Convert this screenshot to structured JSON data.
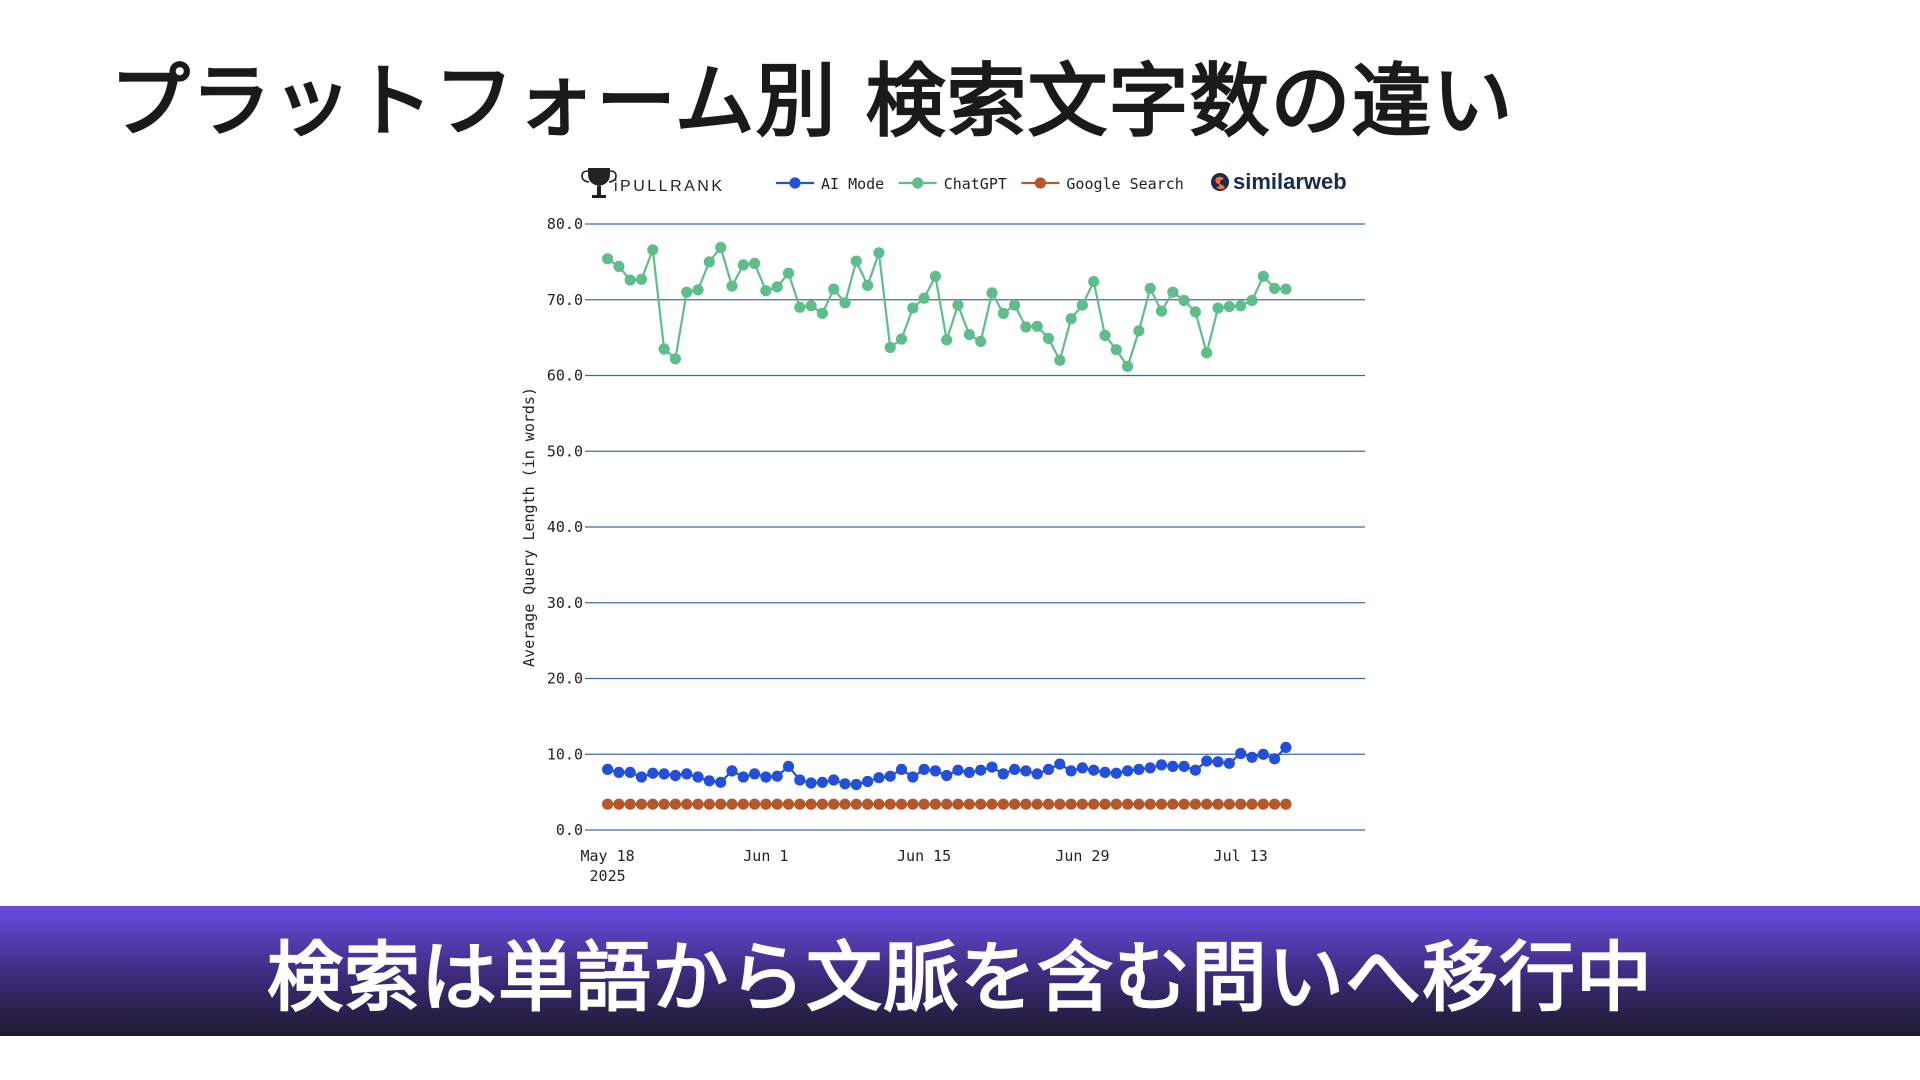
{
  "slide": {
    "title": "プラットフォーム別 検索文字数の違い",
    "banner": "検索は単語から文脈を含む問いへ移行中",
    "banner_color_top": "#6b4ce3",
    "banner_color_bottom": "#1d1a2e"
  },
  "logos": {
    "left": "iPULLRANK",
    "right": "similarweb",
    "left_icon": "trophy-icon",
    "right_icon": "similarweb-swirl-icon"
  },
  "chart_data": {
    "type": "line",
    "title": "",
    "xlabel": "",
    "ylabel": "Average Query Length (in words)",
    "ylim": [
      0,
      80
    ],
    "yticks": [
      "0.0",
      "10.0",
      "20.0",
      "30.0",
      "40.0",
      "50.0",
      "60.0",
      "70.0",
      "80.0"
    ],
    "xlim": [
      "2025-05-16",
      "2025-07-24"
    ],
    "xticks": [
      {
        "date": "2025-05-18",
        "label": "May 18",
        "sublabel": "2025"
      },
      {
        "date": "2025-06-01",
        "label": "Jun 1",
        "sublabel": ""
      },
      {
        "date": "2025-06-15",
        "label": "Jun 15",
        "sublabel": ""
      },
      {
        "date": "2025-06-29",
        "label": "Jun 29",
        "sublabel": ""
      },
      {
        "date": "2025-07-13",
        "label": "Jul 13",
        "sublabel": ""
      }
    ],
    "grid": "horizontal",
    "legend": "top",
    "x_start": "2025-05-18",
    "series": [
      {
        "name": "AI Mode",
        "color": "#2350d8",
        "values": [
          8.0,
          7.6,
          7.6,
          7.0,
          7.5,
          7.4,
          7.2,
          7.4,
          7.0,
          6.5,
          6.3,
          7.8,
          7.0,
          7.4,
          7.0,
          7.1,
          8.4,
          6.6,
          6.2,
          6.3,
          6.6,
          6.1,
          6.0,
          6.4,
          6.9,
          7.1,
          8.0,
          7.0,
          8.0,
          7.8,
          7.2,
          7.9,
          7.6,
          7.9,
          8.3,
          7.4,
          8.0,
          7.8,
          7.4,
          8.0,
          8.7,
          7.8,
          8.2,
          7.9,
          7.6,
          7.5,
          7.8,
          8.0,
          8.2,
          8.6,
          8.4,
          8.4,
          7.9,
          9.1,
          9.0,
          8.8,
          10.1,
          9.6,
          10.0,
          9.4,
          10.9
        ]
      },
      {
        "name": "ChatGPT",
        "color": "#5fbd8c",
        "values": [
          75.4,
          74.4,
          72.6,
          72.7,
          76.6,
          63.5,
          62.2,
          71.0,
          71.3,
          75.0,
          76.9,
          71.8,
          74.6,
          74.8,
          71.2,
          71.7,
          73.5,
          69.0,
          69.2,
          68.2,
          71.4,
          69.6,
          75.1,
          71.9,
          76.2,
          63.7,
          64.8,
          68.9,
          70.2,
          73.1,
          64.7,
          69.3,
          65.4,
          64.5,
          70.9,
          68.2,
          69.3,
          66.4,
          66.5,
          64.9,
          62.0,
          67.5,
          69.3,
          72.4,
          65.3,
          63.4,
          61.2,
          65.9,
          71.5,
          68.5,
          71.0,
          69.9,
          68.4,
          63.0,
          68.9,
          69.1,
          69.2,
          69.9,
          73.1,
          71.5,
          71.4
        ]
      },
      {
        "name": "Google Search",
        "color": "#b5562b",
        "values": [
          3.4,
          3.4,
          3.4,
          3.4,
          3.4,
          3.4,
          3.4,
          3.4,
          3.4,
          3.4,
          3.4,
          3.4,
          3.4,
          3.4,
          3.4,
          3.4,
          3.4,
          3.4,
          3.4,
          3.4,
          3.4,
          3.4,
          3.4,
          3.4,
          3.4,
          3.4,
          3.4,
          3.4,
          3.4,
          3.4,
          3.4,
          3.4,
          3.4,
          3.4,
          3.4,
          3.4,
          3.4,
          3.4,
          3.4,
          3.4,
          3.4,
          3.4,
          3.4,
          3.4,
          3.4,
          3.4,
          3.4,
          3.4,
          3.4,
          3.4,
          3.4,
          3.4,
          3.4,
          3.4,
          3.4,
          3.4,
          3.4,
          3.4,
          3.4,
          3.4,
          3.4
        ]
      }
    ]
  }
}
